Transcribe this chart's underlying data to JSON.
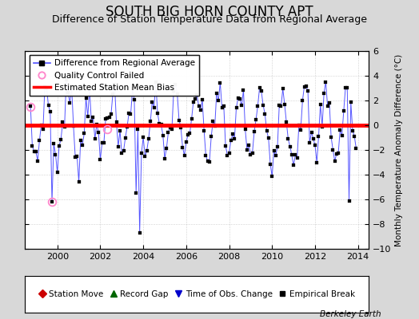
{
  "title": "SOUTH BIG HORN COUNTY APT",
  "subtitle": "Difference of Station Temperature Data from Regional Average",
  "ylabel": "Monthly Temperature Anomaly Difference (°C)",
  "xlim": [
    1998.5,
    2014.5
  ],
  "ylim": [
    -10,
    6
  ],
  "yticks": [
    -10,
    -8,
    -6,
    -4,
    -2,
    0,
    2,
    4,
    6
  ],
  "xticks": [
    2000,
    2002,
    2004,
    2006,
    2008,
    2010,
    2012,
    2014
  ],
  "mean_bias": 0.0,
  "line_color": "#5555ff",
  "bias_color": "#ff0000",
  "background_color": "#d8d8d8",
  "plot_bg_color": "#ffffff",
  "watermark": "Berkeley Earth",
  "title_fontsize": 12,
  "subtitle_fontsize": 9,
  "qc_marker_color": "#ff88cc"
}
